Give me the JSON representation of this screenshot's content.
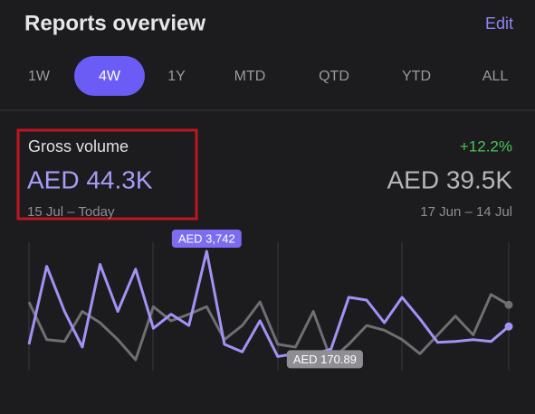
{
  "header": {
    "title": "Reports overview",
    "action": "Edit"
  },
  "tabs": [
    "1W",
    "4W",
    "1Y",
    "MTD",
    "QTD",
    "YTD",
    "ALL"
  ],
  "metric": {
    "name": "Gross volume",
    "change": "+12.2%",
    "current": {
      "value": "AED 44.3K",
      "period": "15 Jul – Today"
    },
    "previous": {
      "value": "AED 39.5K",
      "period": "17 Jun – 14 Jul"
    }
  },
  "chart_data": {
    "type": "line",
    "series": [
      {
        "color": "#a093f5",
        "values": [
          586,
          3233,
          1702,
          490,
          3297,
          1702,
          3138,
          1128,
          1606,
          1224,
          3742,
          586,
          330,
          1383,
          170.89,
          267,
          235,
          426,
          2181,
          2085,
          1320,
          2181,
          1447,
          650,
          681,
          745,
          681,
          1192
        ]
      },
      {
        "color": "#6e6e73",
        "values": [
          2021,
          745,
          681,
          1702,
          1320,
          745,
          60,
          1862,
          1383,
          1606,
          1862,
          745,
          1224,
          2021,
          586,
          490,
          1702,
          60,
          586,
          1224,
          1064,
          745,
          267,
          905,
          1543,
          905,
          2276,
          1925
        ]
      }
    ],
    "annotations": [
      {
        "value": 3742,
        "label": "AED 3,742",
        "color": "#7c6cf2"
      },
      {
        "value": 170.89,
        "label": "AED 170.89",
        "color": "#8e8e93"
      }
    ]
  }
}
